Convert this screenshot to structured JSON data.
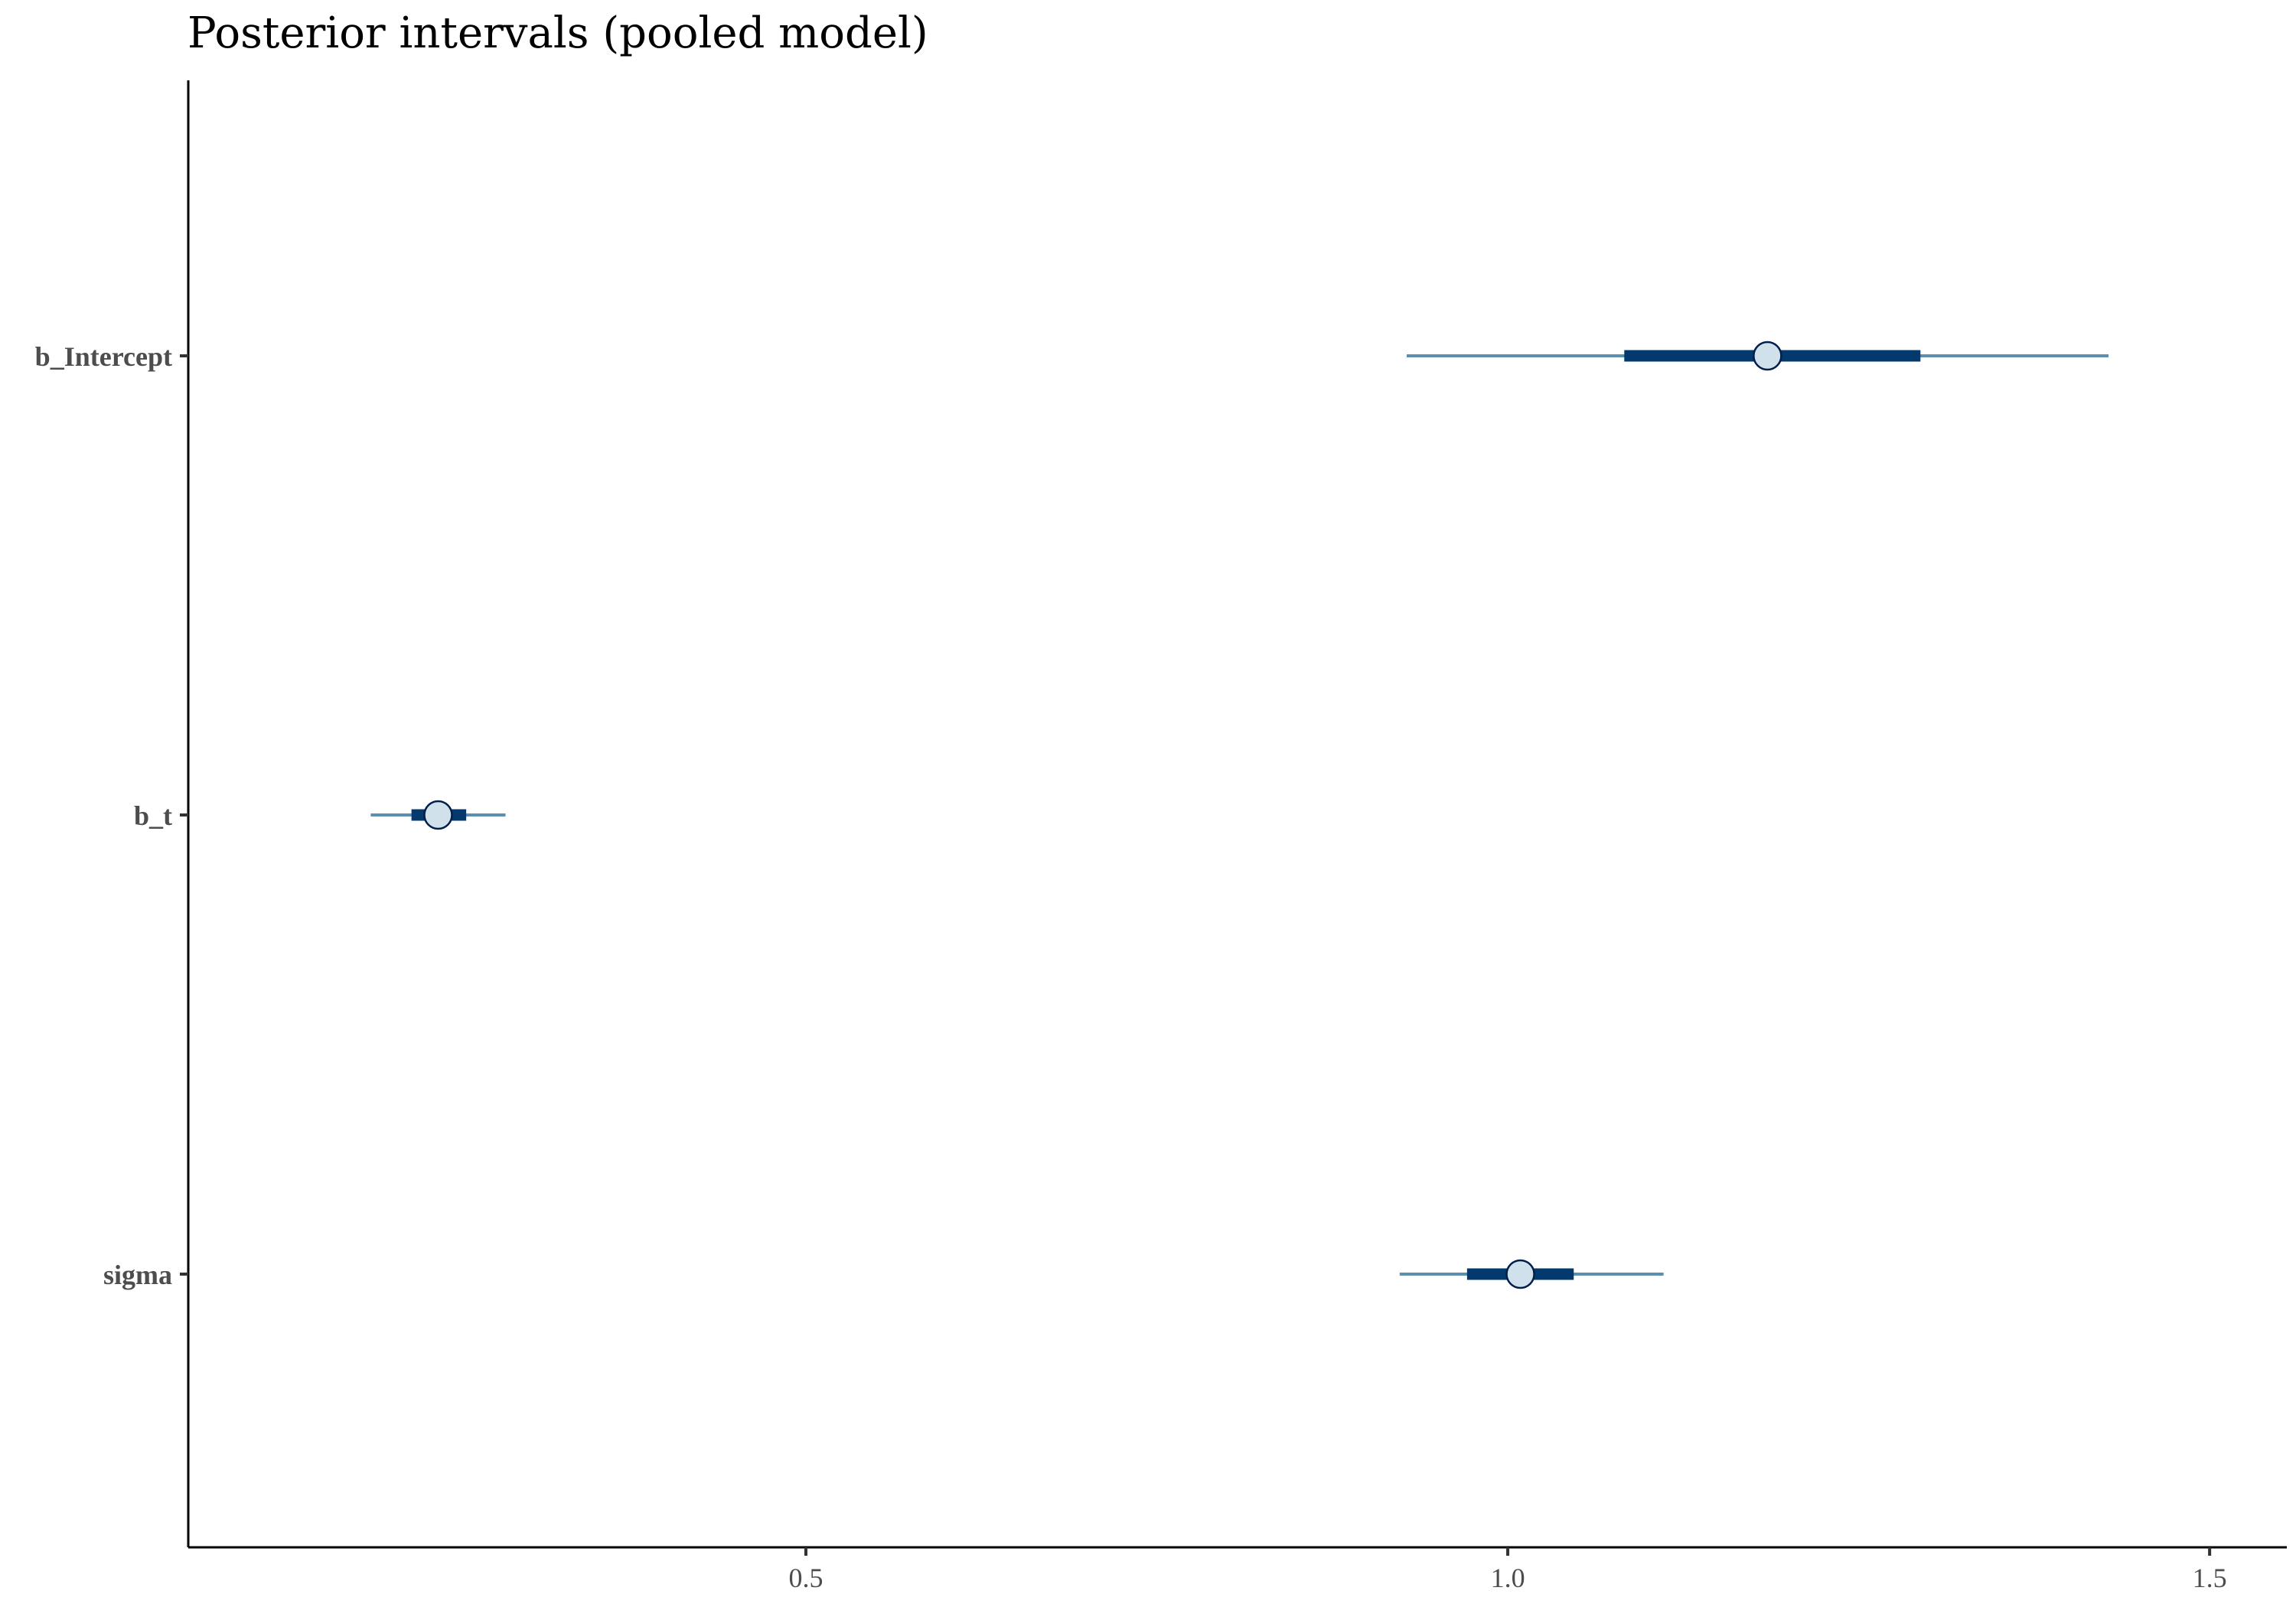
{
  "chart_data": {
    "type": "interval",
    "title": "Posterior intervals (pooled model)",
    "xlabel": "",
    "ylabel": "",
    "xlim": [
      0.06,
      1.555
    ],
    "x_ticks": [
      {
        "value": 0.5,
        "label": "0.5"
      },
      {
        "value": 1.0,
        "label": "1.0"
      },
      {
        "value": 1.5,
        "label": "1.5"
      }
    ],
    "grid": false,
    "parameters": [
      {
        "name": "b_Intercept",
        "median": 1.185,
        "inner": [
          1.083,
          1.294
        ],
        "outer": [
          0.928,
          1.428
        ]
      },
      {
        "name": "b_t",
        "median": 0.238,
        "inner": [
          0.219,
          0.258
        ],
        "outer": [
          0.19,
          0.286
        ]
      },
      {
        "name": "sigma",
        "median": 1.009,
        "inner": [
          0.971,
          1.047
        ],
        "outer": [
          0.923,
          1.111
        ]
      }
    ],
    "colors": {
      "outer": "#5b8fae",
      "inner": "#03396c",
      "point_fill": "#d1e1ec",
      "point_stroke": "#011f4b"
    }
  }
}
